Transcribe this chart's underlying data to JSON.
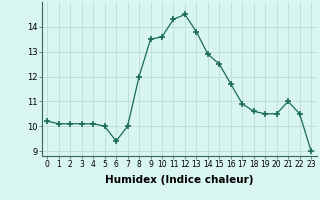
{
  "xlabel": "Humidex (Indice chaleur)",
  "x": [
    0,
    1,
    2,
    3,
    4,
    5,
    6,
    7,
    8,
    9,
    10,
    11,
    12,
    13,
    14,
    15,
    16,
    17,
    18,
    19,
    20,
    21,
    22,
    23
  ],
  "y": [
    10.2,
    10.1,
    10.1,
    10.1,
    10.1,
    10.0,
    9.4,
    10.0,
    12.0,
    13.5,
    13.6,
    14.3,
    14.5,
    13.8,
    12.9,
    12.5,
    11.7,
    10.9,
    10.6,
    10.5,
    10.5,
    11.0,
    10.5,
    9.0
  ],
  "line_color": "#1a6b5a",
  "marker": "+",
  "marker_size": 4,
  "marker_lw": 1.2,
  "bg_color": "#d8f5f0",
  "grid_color": "#b8d8d0",
  "ylim": [
    8.8,
    15.0
  ],
  "xlim": [
    -0.5,
    23.5
  ],
  "yticks": [
    9,
    10,
    11,
    12,
    13,
    14
  ],
  "xtick_fontsize": 5.5,
  "ytick_fontsize": 6.0,
  "label_fontsize": 7.5
}
